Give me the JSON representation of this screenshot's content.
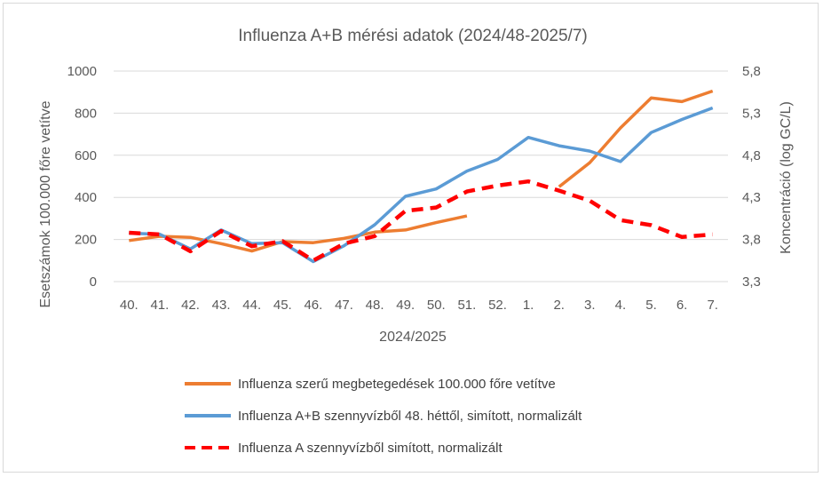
{
  "chart_data": {
    "type": "line",
    "title": "Influenza A+B mérési adatok (2024/48-2025/7)",
    "xlabel": "2024/2025",
    "ylabel_left": "Esetszámok 100.000 főre vetítve",
    "ylabel_right": "Koncentráció (log GC/L)",
    "categories": [
      "40.",
      "41.",
      "42.",
      "43.",
      "44.",
      "45.",
      "46.",
      "47.",
      "48.",
      "49.",
      "50.",
      "51.",
      "52.",
      "1.",
      "2.",
      "3.",
      "4.",
      "5.",
      "6.",
      "7."
    ],
    "y_left": {
      "min": 0,
      "max": 1000,
      "ticks": [
        "0",
        "200",
        "400",
        "600",
        "800",
        "1000"
      ]
    },
    "y_right": {
      "min": 3.3,
      "max": 5.8,
      "ticks": [
        "3,3",
        "3,8",
        "4,3",
        "4,8",
        "5,3",
        "5,8"
      ]
    },
    "grid": "horizontal",
    "legend_position": "bottom",
    "series": [
      {
        "name": "Influenza szerű megbetegedések 100.000 főre vetítve",
        "axis": "left",
        "color": "#ed7d31",
        "dash": "solid",
        "values": [
          195,
          215,
          210,
          180,
          145,
          190,
          185,
          205,
          235,
          245,
          280,
          312,
          null,
          null,
          450,
          565,
          730,
          872,
          855,
          905
        ]
      },
      {
        "name": "Influenza A+B szennyvízből 48. héttől, simított, normalizált",
        "axis": "left",
        "color": "#5b9bd5",
        "dash": "solid",
        "values": [
          230,
          225,
          155,
          245,
          180,
          185,
          95,
          170,
          270,
          405,
          440,
          525,
          580,
          685,
          645,
          620,
          570,
          708,
          770,
          825
        ]
      },
      {
        "name": "Influenza A szennyvízből simított, normalizált",
        "axis": "right",
        "color": "#ff0000",
        "dash": "dashed",
        "values": [
          3.88,
          3.86,
          3.66,
          3.9,
          3.72,
          3.78,
          3.55,
          3.75,
          3.84,
          4.14,
          4.18,
          4.37,
          4.44,
          4.49,
          4.38,
          4.26,
          4.03,
          3.97,
          3.83,
          3.86
        ]
      }
    ]
  }
}
